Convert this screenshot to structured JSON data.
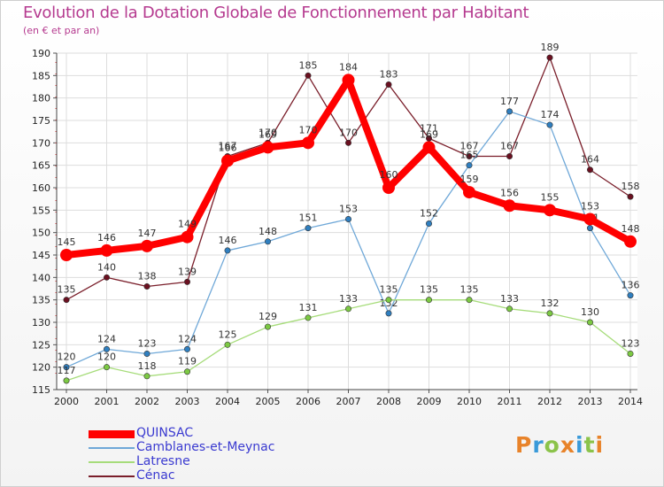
{
  "header": {
    "title": "Evolution de la Dotation Globale de Fonctionnement par Habitant",
    "subtitle": "(en € et par an)"
  },
  "logo": {
    "text": "Proxiti",
    "colors": [
      "#e8832a",
      "#3a9ad9",
      "#8bc34a",
      "#e8832a",
      "#3a9ad9",
      "#8bc34a",
      "#e8832a"
    ]
  },
  "chart_data": {
    "type": "line",
    "title": "Evolution de la Dotation Globale de Fonctionnement par Habitant",
    "subtitle": "(en € et par an)",
    "xlabel": "",
    "ylabel": "",
    "x": [
      "2000",
      "2001",
      "2002",
      "2003",
      "2004",
      "2005",
      "2006",
      "2007",
      "2008",
      "2009",
      "2010",
      "2011",
      "2012",
      "2013",
      "2014"
    ],
    "ylim": [
      115,
      190
    ],
    "yticks": [
      115,
      120,
      125,
      130,
      135,
      140,
      145,
      150,
      155,
      160,
      165,
      170,
      175,
      180,
      185,
      190
    ],
    "grid": true,
    "legend": "bottom-left",
    "series": [
      {
        "name": "Cénac",
        "color": "#7a1e2a",
        "marker": "#6a1020",
        "values": [
          135,
          140,
          138,
          139,
          167,
          170,
          185,
          170,
          183,
          171,
          167,
          167,
          189,
          164,
          158
        ],
        "labels": [
          "135",
          "140",
          "138",
          "139",
          "167",
          "170",
          "185",
          "170",
          "183",
          "171",
          "167",
          "167",
          "189",
          "164",
          "158"
        ]
      },
      {
        "name": "Camblanes-et-Meynac",
        "color": "#6fa8d8",
        "marker": "#2f7fc0",
        "values": [
          120,
          124,
          123,
          124,
          146,
          148,
          151,
          153,
          132,
          152,
          165,
          177,
          174,
          151,
          136
        ],
        "labels": [
          "120",
          "124",
          "123",
          "124",
          "146",
          "148",
          "151",
          "153",
          "132",
          "152",
          "165",
          "177",
          "174",
          "151",
          "136"
        ]
      },
      {
        "name": "Latresne",
        "color": "#a6dc7a",
        "marker": "#7cc943",
        "values": [
          117,
          120,
          118,
          119,
          125,
          129,
          131,
          133,
          135,
          135,
          135,
          133,
          132,
          130,
          123
        ],
        "labels": [
          "117",
          "120",
          "118",
          "119",
          "125",
          "129",
          "131",
          "133",
          "135",
          "135",
          "135",
          "133",
          "132",
          "130",
          "123"
        ]
      },
      {
        "name": "QUINSAC",
        "color": "#ff0000",
        "marker": "#ff0000",
        "values": [
          145,
          146,
          147,
          149,
          166,
          169,
          170,
          184,
          160,
          169,
          159,
          156,
          155,
          153,
          148
        ],
        "labels": [
          "145",
          "146",
          "147",
          "149",
          "166",
          "169",
          "170",
          "184",
          "160",
          "169",
          "159",
          "156",
          "155",
          "153",
          "148"
        ]
      }
    ],
    "legend_entries": [
      {
        "name": "QUINSAC",
        "color": "#ff0000",
        "text_color": "#3a3ad0"
      },
      {
        "name": "Camblanes-et-Meynac",
        "color": "#6fa8d8",
        "text_color": "#3a3ad0"
      },
      {
        "name": "Latresne",
        "color": "#a6dc7a",
        "text_color": "#3a3ad0"
      },
      {
        "name": "Cénac",
        "color": "#7a1e2a",
        "text_color": "#3a3ad0"
      }
    ]
  }
}
